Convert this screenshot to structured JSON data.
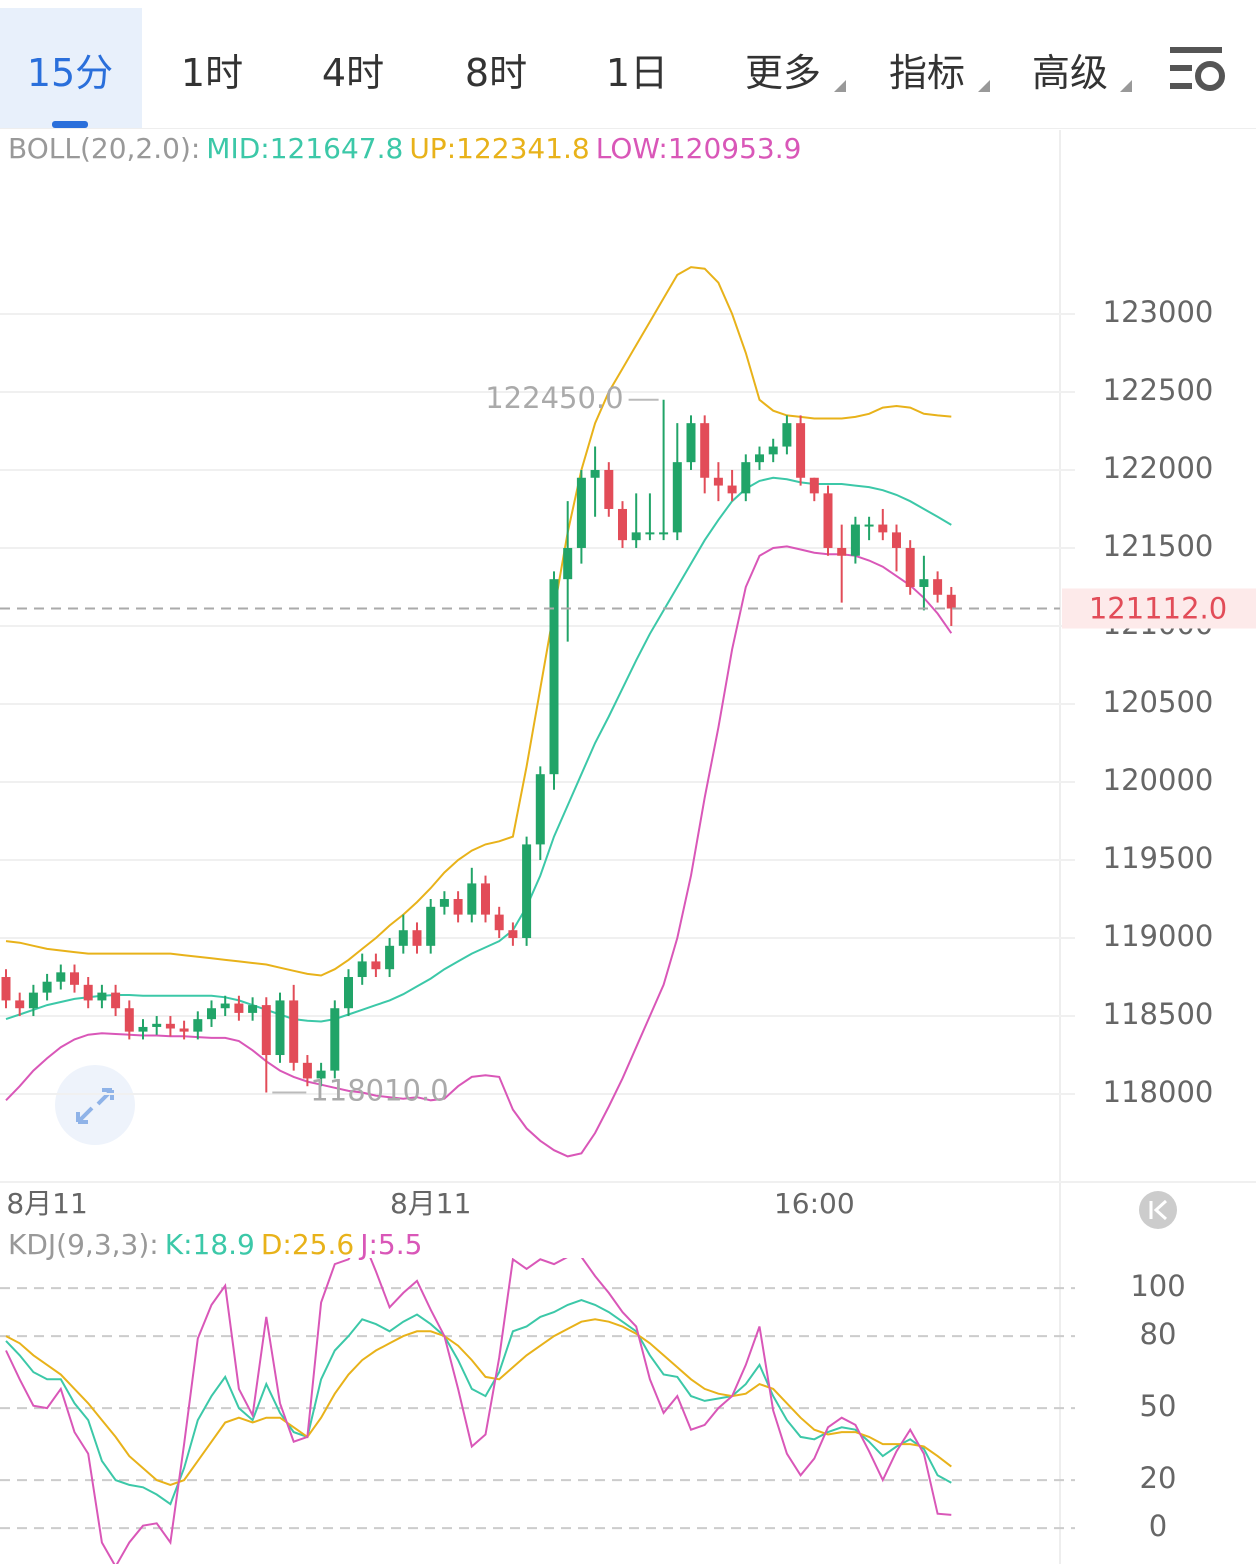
{
  "tabs": [
    "15分",
    "1时",
    "4时",
    "8时",
    "1日",
    "更多",
    "指标",
    "高级"
  ],
  "chart_data": [
    {
      "type": "candlestick",
      "indicator": "BOLL(20,2.0):",
      "up_color": "#21a468",
      "down_color": "#e24c58",
      "grid": true,
      "x": [
        null,
        null,
        null,
        "8月11",
        null,
        null,
        null,
        null,
        null,
        null,
        null,
        null,
        null,
        null,
        null,
        null,
        null,
        null,
        null,
        null,
        null,
        null,
        null,
        null,
        null,
        null,
        null,
        null,
        null,
        null,
        null,
        "8月11",
        null,
        null,
        null,
        null,
        null,
        null,
        null,
        null,
        null,
        null,
        null,
        null,
        null,
        null,
        null,
        null,
        null,
        null,
        null,
        null,
        null,
        null,
        null,
        null,
        null,
        null,
        null,
        "16:00",
        null,
        null,
        null,
        null,
        null,
        null,
        null,
        null,
        null,
        null
      ],
      "open": [
        118750,
        118600,
        118550,
        118650,
        118720,
        118780,
        118700,
        118600,
        118650,
        118550,
        118400,
        118430,
        118450,
        118420,
        118400,
        118480,
        118550,
        118580,
        118520,
        118570,
        118250,
        118600,
        118200,
        118100,
        118150,
        118550,
        118750,
        118850,
        118800,
        118950,
        119050,
        118950,
        119200,
        119250,
        119150,
        119350,
        119150,
        119050,
        119000,
        119600,
        120050,
        121300,
        121500,
        121950,
        122000,
        121750,
        121550,
        121600,
        121600,
        121600,
        122050,
        122300,
        121950,
        121900,
        121850,
        122050,
        122100,
        122150,
        122300,
        121950,
        121850,
        121500,
        121450,
        121650,
        121650,
        121600,
        121500,
        121250,
        121300,
        121200
      ],
      "high": [
        118800,
        118650,
        118700,
        118770,
        118830,
        118830,
        118750,
        118700,
        118700,
        118600,
        118480,
        118500,
        118500,
        118470,
        118530,
        118600,
        118630,
        118630,
        118620,
        118620,
        118650,
        118700,
        118250,
        118200,
        118600,
        118800,
        118900,
        118900,
        119000,
        119150,
        119100,
        119250,
        119300,
        119300,
        119450,
        119400,
        119200,
        119100,
        119650,
        120100,
        121350,
        121800,
        122000,
        122150,
        122050,
        121800,
        121850,
        121850,
        122450,
        122300,
        122350,
        122350,
        122050,
        122000,
        122100,
        122150,
        122200,
        122350,
        122350,
        121950,
        121900,
        121650,
        121700,
        121700,
        121750,
        121650,
        121550,
        121450,
        121350,
        121250
      ],
      "low": [
        118550,
        118500,
        118500,
        118600,
        118670,
        118650,
        118550,
        118550,
        118500,
        118350,
        118350,
        118380,
        118370,
        118350,
        118350,
        118430,
        118500,
        118470,
        118470,
        118010,
        118200,
        118150,
        118050,
        118050,
        118100,
        118500,
        118700,
        118750,
        118750,
        118900,
        118900,
        118900,
        119150,
        119100,
        119100,
        119100,
        119000,
        118950,
        118950,
        119500,
        119950,
        120900,
        121400,
        121700,
        121700,
        121500,
        121500,
        121550,
        121550,
        121550,
        122000,
        121850,
        121800,
        121800,
        121800,
        122000,
        122050,
        122100,
        121900,
        121800,
        121450,
        121150,
        121400,
        121550,
        121550,
        121350,
        121200,
        121100,
        121150,
        121000
      ],
      "close": [
        118600,
        118550,
        118650,
        118720,
        118780,
        118700,
        118600,
        118650,
        118550,
        118400,
        118430,
        118450,
        118420,
        118400,
        118480,
        118550,
        118580,
        118520,
        118570,
        118250,
        118600,
        118200,
        118100,
        118150,
        118550,
        118750,
        118850,
        118800,
        118950,
        119050,
        118950,
        119200,
        119250,
        119150,
        119350,
        119150,
        119050,
        119000,
        119600,
        120050,
        121300,
        121500,
        121950,
        122000,
        121750,
        121550,
        121600,
        121600,
        121600,
        122050,
        122300,
        121950,
        121900,
        121850,
        122050,
        122100,
        122150,
        122300,
        121950,
        121850,
        121500,
        121450,
        121650,
        121650,
        121600,
        121500,
        121250,
        121300,
        121200,
        121112
      ],
      "series": [
        {
          "label": "MID:121647.8",
          "color": "#3cc8a8",
          "values": [
            118480,
            118510,
            118540,
            118570,
            118590,
            118610,
            118620,
            118630,
            118635,
            118635,
            118630,
            118630,
            118630,
            118630,
            118630,
            118630,
            118620,
            118600,
            118570,
            118540,
            118510,
            118480,
            118470,
            118465,
            118480,
            118510,
            118540,
            118570,
            118600,
            118640,
            118690,
            118740,
            118800,
            118850,
            118900,
            118940,
            118980,
            119050,
            119200,
            119400,
            119650,
            119850,
            120050,
            120250,
            120420,
            120600,
            120780,
            120950,
            121100,
            121250,
            121400,
            121550,
            121680,
            121800,
            121880,
            121930,
            121950,
            121940,
            121920,
            121910,
            121910,
            121910,
            121900,
            121890,
            121870,
            121840,
            121800,
            121750,
            121700,
            121647.8
          ]
        },
        {
          "label": "UP:122341.8",
          "color": "#e8b21a",
          "values": [
            118980,
            118970,
            118950,
            118930,
            118920,
            118910,
            118900,
            118900,
            118900,
            118900,
            118900,
            118900,
            118900,
            118890,
            118880,
            118870,
            118860,
            118850,
            118840,
            118830,
            118810,
            118790,
            118770,
            118760,
            118800,
            118860,
            118930,
            119000,
            119080,
            119150,
            119230,
            119320,
            119420,
            119500,
            119560,
            119600,
            119620,
            119650,
            120100,
            120600,
            121100,
            121600,
            122000,
            122300,
            122500,
            122650,
            122800,
            122950,
            123100,
            123250,
            123300,
            123290,
            123200,
            123000,
            122750,
            122450,
            122380,
            122350,
            122340,
            122330,
            122330,
            122330,
            122340,
            122360,
            122400,
            122410,
            122400,
            122360,
            122350,
            122341.8
          ]
        },
        {
          "label": "LOW:120953.9",
          "color": "#d957b8",
          "values": [
            117960,
            118050,
            118150,
            118230,
            118300,
            118350,
            118380,
            118390,
            118385,
            118380,
            118375,
            118375,
            118370,
            118370,
            118365,
            118360,
            118360,
            118340,
            118280,
            118210,
            118150,
            118110,
            118080,
            118060,
            118040,
            118020,
            118010,
            117990,
            117980,
            117970,
            117980,
            117960,
            117970,
            118050,
            118110,
            118120,
            118110,
            117900,
            117780,
            117700,
            117640,
            117600,
            117620,
            117750,
            117920,
            118100,
            118300,
            118500,
            118700,
            119000,
            119400,
            119900,
            120350,
            120850,
            121250,
            121450,
            121500,
            121510,
            121490,
            121470,
            121460,
            121460,
            121450,
            121420,
            121380,
            121320,
            121260,
            121180,
            121080,
            120953.9
          ]
        }
      ],
      "ylim": [
        117449,
        124179
      ],
      "yticks": [
        118000,
        118500,
        119000,
        119500,
        120000,
        120500,
        121000,
        121500,
        122000,
        122500,
        123000
      ],
      "last_price": {
        "value": 121112,
        "label": "121112.0"
      },
      "high_marker": {
        "value": 122450,
        "label": "122450.0"
      },
      "low_marker": {
        "value": 118010,
        "label": "118010.0"
      }
    },
    {
      "type": "line",
      "indicator": "KDJ(9,3,3):",
      "grid": true,
      "series": [
        {
          "label": "K:18.9",
          "color": "#3cc8a8",
          "values": [
            78,
            72,
            65,
            62,
            62,
            52,
            45,
            28,
            20,
            18,
            17,
            14,
            10,
            25,
            45,
            55,
            63,
            50,
            45,
            60,
            48,
            40,
            38,
            62,
            74,
            80,
            87,
            85,
            82,
            86,
            89,
            85,
            80,
            70,
            58,
            55,
            65,
            82,
            84,
            88,
            90,
            93,
            95,
            93,
            90,
            86,
            82,
            72,
            64,
            63,
            55,
            53,
            54,
            55,
            60,
            68,
            55,
            45,
            38,
            37,
            40,
            42,
            41,
            36,
            30,
            34,
            37,
            33,
            22,
            18.9
          ]
        },
        {
          "label": "D:25.6",
          "color": "#e8b21a",
          "values": [
            80,
            77,
            72,
            68,
            64,
            58,
            52,
            45,
            38,
            30,
            25,
            20,
            18,
            20,
            28,
            36,
            44,
            46,
            44,
            46,
            46,
            42,
            38,
            46,
            56,
            64,
            70,
            74,
            77,
            80,
            82,
            82,
            80,
            76,
            70,
            63,
            62,
            67,
            72,
            76,
            80,
            83,
            86,
            87,
            86,
            84,
            81,
            77,
            72,
            67,
            62,
            58,
            56,
            55,
            56,
            60,
            58,
            52,
            46,
            41,
            39,
            40,
            40,
            38,
            35,
            35,
            35,
            34,
            30,
            25.6
          ]
        },
        {
          "label": "J:5.5",
          "color": "#d957b8",
          "values": [
            74,
            62,
            51,
            50,
            58,
            40,
            31,
            -6,
            -16,
            -6,
            1,
            2,
            -6,
            35,
            79,
            93,
            101,
            58,
            47,
            88,
            52,
            36,
            38,
            94,
            110,
            112,
            121,
            107,
            92,
            98,
            103,
            91,
            80,
            58,
            34,
            39,
            71,
            112,
            108,
            112,
            110,
            113,
            113,
            105,
            98,
            90,
            84,
            62,
            48,
            55,
            41,
            43,
            50,
            55,
            68,
            84,
            49,
            31,
            22,
            29,
            42,
            46,
            43,
            32,
            20,
            32,
            41,
            31,
            6,
            5.5
          ]
        }
      ],
      "ylim": [
        -13.3,
        111.7
      ],
      "yticks": [
        0,
        20,
        50,
        80,
        100
      ]
    }
  ]
}
